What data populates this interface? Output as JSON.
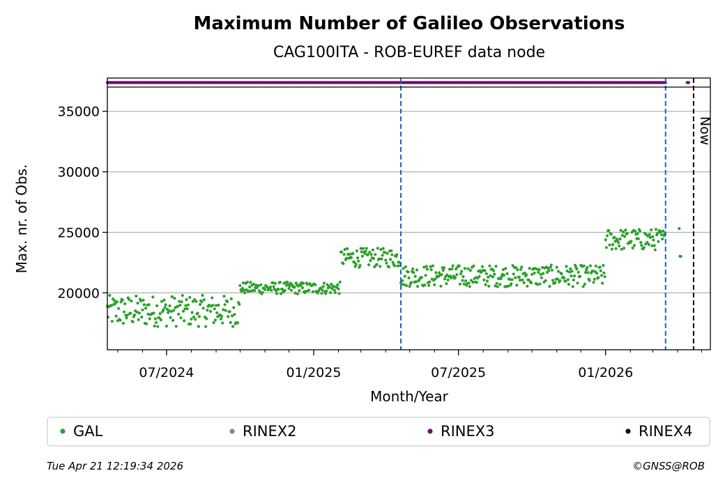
{
  "chart_data": {
    "type": "scatter",
    "title": "Maximum Number of Galileo Observations",
    "subtitle": "CAG100ITA - ROB-EUREF data node",
    "xlabel": "Month/Year",
    "ylabel": "Max. nr. of Obs.",
    "x_tick_labels": [
      "07/2024",
      "01/2025",
      "07/2025",
      "01/2026"
    ],
    "x_ticks": [
      "2024-07-01",
      "2025-01-01",
      "2025-07-01",
      "2026-01-01"
    ],
    "xlim": [
      "2024-04-18",
      "2026-05-12"
    ],
    "y_ticks": [
      20000,
      25000,
      30000,
      35000
    ],
    "y_tick_labels": [
      "20000",
      "25000",
      "30000",
      "35000"
    ],
    "ylim": [
      15300,
      37000
    ],
    "grid": "horizontal",
    "vlines": [
      {
        "x": "2025-04-20",
        "style": "dashed",
        "color": "#1f5fbf"
      },
      {
        "x": "2026-03-17",
        "style": "dashed",
        "color": "#1f5fbf"
      },
      {
        "x": "2026-04-21",
        "style": "dashed",
        "color": "#000000",
        "label": "Now"
      }
    ],
    "rinex_strip": [
      {
        "name": "RINEX3",
        "from": "2024-04-18",
        "to": "2026-03-17"
      },
      {
        "name": "RINEX3",
        "from": "2026-04-13",
        "to": "2026-04-15"
      }
    ],
    "segments": [
      {
        "from": "2024-04-18",
        "to": "2024-10-01",
        "base": 18500,
        "amp": 1300
      },
      {
        "from": "2024-10-01",
        "to": "2025-02-04",
        "base": 20400,
        "amp": 500
      },
      {
        "from": "2025-02-04",
        "to": "2025-04-20",
        "base": 22900,
        "amp": 800
      },
      {
        "from": "2025-04-20",
        "to": "2026-01-01",
        "base": 21400,
        "amp": 900
      },
      {
        "from": "2026-01-01",
        "to": "2026-03-17",
        "base": 24400,
        "amp": 900
      },
      {
        "from": "2026-04-03",
        "to": "2026-04-06",
        "base": 24300,
        "amp": 1300
      }
    ],
    "legend": [
      {
        "name": "GAL",
        "color": "#2ca02c"
      },
      {
        "name": "RINEX2",
        "color": "#7f7fbf"
      },
      {
        "name": "RINEX3",
        "color": "#6b0f6b"
      },
      {
        "name": "RINEX4",
        "color": "#1a0010"
      }
    ],
    "legend_placement": "bottom"
  },
  "footer": {
    "timestamp": "Tue Apr 21 12:19:34 2026",
    "credit": "©GNSS@ROB"
  }
}
